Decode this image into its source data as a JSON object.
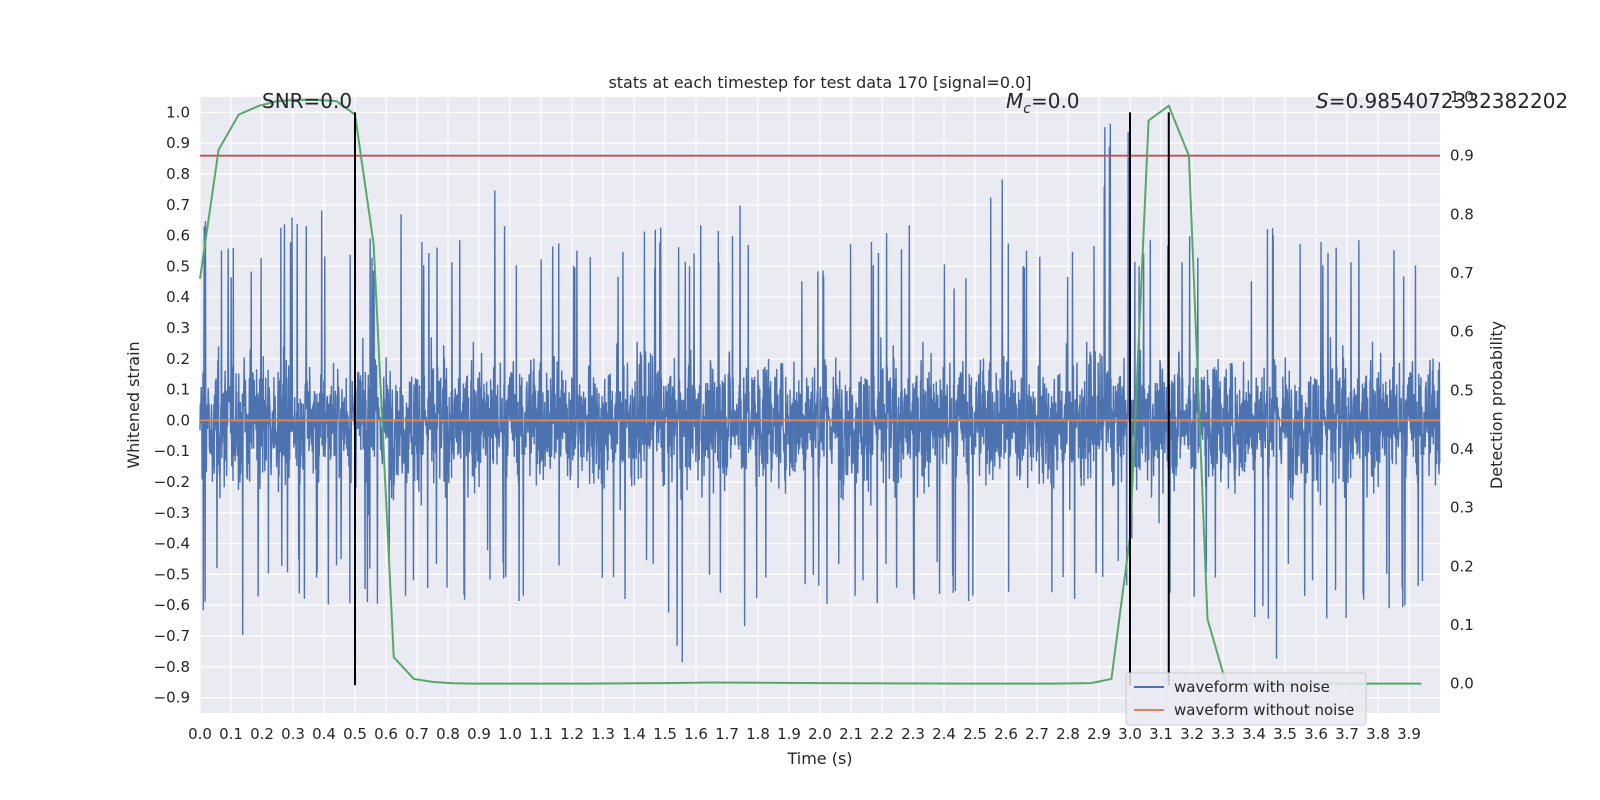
{
  "chart_data": {
    "type": "line",
    "title": "stats at each timestep for test data 170 [signal=0.0]",
    "xlabel": "Time (s)",
    "ylabel": "Whitened strain",
    "y2label": "Detection probability",
    "xlim": [
      0.0,
      4.0
    ],
    "ylim": [
      -0.95,
      1.05
    ],
    "y2lim": [
      -0.05,
      1.0
    ],
    "x_ticks": [
      0.0,
      0.1,
      0.2,
      0.3,
      0.4,
      0.5,
      0.6,
      0.7,
      0.8,
      0.9,
      1.0,
      1.1,
      1.2,
      1.3,
      1.4,
      1.5,
      1.6,
      1.7,
      1.8,
      1.9,
      2.0,
      2.1,
      2.2,
      2.3,
      2.4,
      2.5,
      2.6,
      2.7,
      2.8,
      2.9,
      3.0,
      3.1,
      3.2,
      3.3,
      3.4,
      3.5,
      3.6,
      3.7,
      3.8,
      3.9
    ],
    "y_ticks": [
      -0.9,
      -0.8,
      -0.7,
      -0.6,
      -0.5,
      -0.4,
      -0.3,
      -0.2,
      -0.1,
      0.0,
      0.1,
      0.2,
      0.3,
      0.4,
      0.5,
      0.6,
      0.7,
      0.8,
      0.9,
      1.0
    ],
    "y_tick_labels": [
      "−0.9",
      "−0.8",
      "−0.7",
      "−0.6",
      "−0.5",
      "−0.4",
      "−0.3",
      "−0.2",
      "−0.1",
      "0.0",
      "0.1",
      "0.2",
      "0.3",
      "0.4",
      "0.5",
      "0.6",
      "0.7",
      "0.8",
      "0.9",
      "1.0"
    ],
    "y2_ticks": [
      0.0,
      0.1,
      0.2,
      0.3,
      0.4,
      0.5,
      0.6,
      0.7,
      0.8,
      0.9,
      1.0
    ],
    "grid": true,
    "background": "#eaeaf2",
    "annotations": [
      {
        "text": "SNR=0.0",
        "x": 0.2,
        "y": 1.02
      },
      {
        "text_base": "M",
        "text_sub": "c",
        "text_rest": "=0.0",
        "x": 2.6,
        "y": 1.02
      },
      {
        "text_italic": "S",
        "text_rest": "=0.9854072332382202",
        "x": 3.6,
        "y": 1.02
      }
    ],
    "vertical_lines": [
      0.5,
      3.0,
      3.125
    ],
    "vertical_line_range": [
      -0.86,
      1.0
    ],
    "threshold_line": {
      "y2": 0.9,
      "color": "#c44e52"
    },
    "series": [
      {
        "name": "waveform with noise",
        "color": "#4c72b0",
        "kind": "noise",
        "sample_rate_per_s": 1024,
        "envelope_min": [
          -0.62,
          -0.72,
          -0.6,
          -0.6,
          -0.6,
          -0.6,
          -0.6,
          -0.55,
          -0.6,
          -0.55,
          -0.6,
          -0.55,
          -0.55,
          -0.6,
          -0.55,
          -0.82,
          -0.6,
          -0.7,
          -0.6,
          -0.65,
          -0.6,
          -0.6,
          -0.55,
          -0.6,
          -0.6,
          -0.84,
          -0.65,
          -0.6,
          -0.6,
          -0.6,
          -0.4,
          -0.6,
          -0.6,
          -0.8,
          -0.78,
          -0.6,
          -0.65,
          -0.6,
          -0.65,
          -0.55
        ],
        "envelope_max": [
          0.65,
          0.6,
          0.72,
          0.73,
          0.65,
          0.6,
          0.7,
          0.6,
          0.6,
          0.81,
          0.6,
          0.6,
          0.6,
          0.6,
          0.65,
          0.6,
          0.65,
          0.7,
          0.82,
          0.6,
          0.6,
          0.6,
          0.65,
          0.7,
          0.55,
          0.83,
          0.6,
          0.6,
          0.6,
          1.0,
          0.6,
          0.6,
          0.65,
          0.6,
          0.77,
          0.6,
          0.6,
          0.6,
          0.6,
          0.6
        ],
        "typical_amplitude": 0.3
      },
      {
        "name": "waveform without noise",
        "color": "#dd8452",
        "kind": "flat",
        "y": 0.0
      },
      {
        "name": "Detection probability",
        "color": "#55a868",
        "axis": "right",
        "x": [
          0.0,
          0.06,
          0.125,
          0.19,
          0.25,
          0.31,
          0.375,
          0.44,
          0.5,
          0.56,
          0.625,
          0.69,
          0.75,
          0.81,
          0.875,
          1.0,
          1.25,
          1.5,
          1.65,
          2.0,
          2.5,
          2.75,
          2.875,
          2.94,
          3.0,
          3.06,
          3.125,
          3.19,
          3.25,
          3.31,
          3.375,
          3.5,
          3.75,
          3.94
        ],
        "values": [
          0.69,
          0.91,
          0.97,
          0.985,
          0.993,
          0.995,
          0.995,
          0.993,
          0.97,
          0.75,
          0.045,
          0.008,
          0.003,
          0.001,
          0.0,
          0.0,
          0.0,
          0.001,
          0.002,
          0.001,
          0.0,
          0.0,
          0.001,
          0.008,
          0.25,
          0.96,
          0.985,
          0.9,
          0.11,
          0.0,
          0.0,
          0.0,
          0.0,
          0.0
        ]
      }
    ],
    "legend": {
      "placement": "bottom-right",
      "entries": [
        {
          "label": "waveform with noise",
          "color": "#4c72b0"
        },
        {
          "label": "waveform without noise",
          "color": "#dd8452"
        }
      ]
    }
  }
}
